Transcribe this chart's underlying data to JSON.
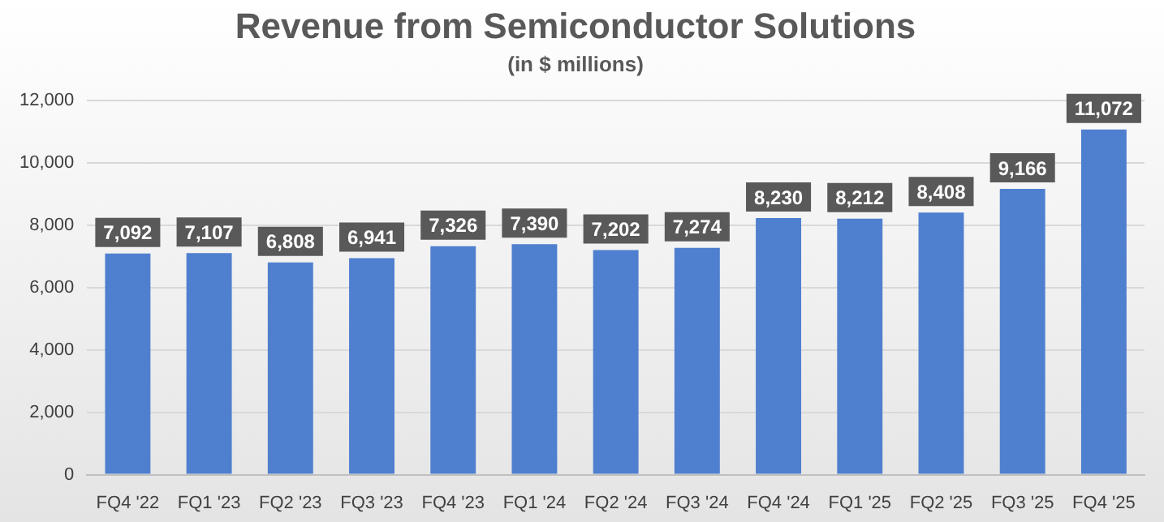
{
  "chart_data": {
    "type": "bar",
    "title": "Revenue from Semiconductor Solutions",
    "subtitle": "(in $ millions)",
    "categories": [
      "FQ4 '22",
      "FQ1 '23",
      "FQ2 '23",
      "FQ3 '23",
      "FQ4 '23",
      "FQ1 '24",
      "FQ2 '24",
      "FQ3 '24",
      "FQ4 '24",
      "FQ1 '25",
      "FQ2 '25",
      "FQ3 '25",
      "FQ4 '25"
    ],
    "values": [
      7092,
      7107,
      6808,
      6941,
      7326,
      7390,
      7202,
      7274,
      8230,
      8212,
      8408,
      9166,
      11072
    ],
    "value_labels": [
      "7,092",
      "7,107",
      "6,808",
      "6,941",
      "7,326",
      "7,390",
      "7,202",
      "7,274",
      "8,230",
      "8,212",
      "8,408",
      "9,166",
      "11,072"
    ],
    "color": "#4f7fcf",
    "ylim": [
      0,
      12000
    ],
    "yticks": [
      {
        "value": 0,
        "label": "0"
      },
      {
        "value": 2000,
        "label": "2,000"
      },
      {
        "value": 4000,
        "label": "4,000"
      },
      {
        "value": 6000,
        "label": "6,000"
      },
      {
        "value": 8000,
        "label": "8,000"
      },
      {
        "value": 10000,
        "label": "10,000"
      },
      {
        "value": 12000,
        "label": "12,000"
      }
    ],
    "grid": "y"
  }
}
